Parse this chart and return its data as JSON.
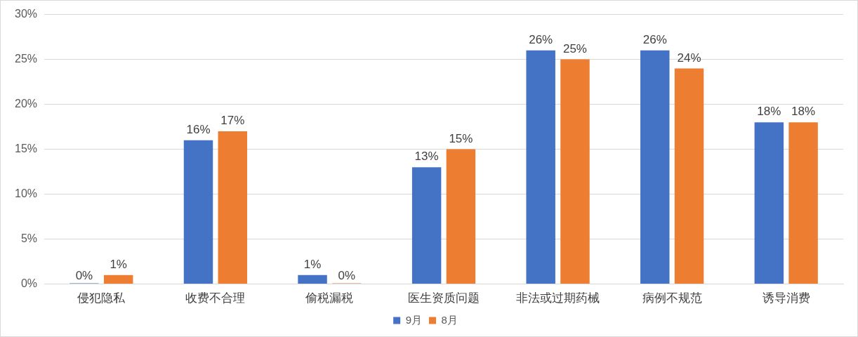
{
  "chart_data": {
    "type": "bar",
    "categories": [
      "侵犯隐私",
      "收费不合理",
      "偷税漏税",
      "医生资质问题",
      "非法或过期药械",
      "病例不规范",
      "诱导消费"
    ],
    "series": [
      {
        "name": "9月",
        "color": "#4472c4",
        "values": [
          0,
          16,
          1,
          13,
          26,
          26,
          18
        ],
        "value_labels": [
          "0%",
          "16%",
          "1%",
          "13%",
          "26%",
          "26%",
          "18%"
        ]
      },
      {
        "name": "8月",
        "color": "#ed7d31",
        "values": [
          1,
          17,
          0,
          15,
          25,
          24,
          18
        ],
        "value_labels": [
          "1%",
          "17%",
          "0%",
          "15%",
          "25%",
          "24%",
          "18%"
        ]
      }
    ],
    "ylim": [
      0,
      30
    ],
    "yticks": [
      {
        "value": 0,
        "label": "0%"
      },
      {
        "value": 5,
        "label": "5%"
      },
      {
        "value": 10,
        "label": "10%"
      },
      {
        "value": 15,
        "label": "15%"
      },
      {
        "value": 20,
        "label": "20%"
      },
      {
        "value": 25,
        "label": "25%"
      },
      {
        "value": 30,
        "label": "30%"
      }
    ],
    "grid": "y",
    "legend": "bottom"
  }
}
